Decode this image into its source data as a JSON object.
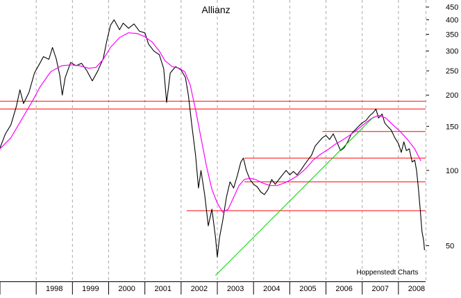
{
  "chart_data": {
    "type": "line",
    "title": "Allianz",
    "credit": "Hoppenstedt Charts",
    "scale": "log",
    "ylim": [
      36,
      480
    ],
    "xlim": [
      1997.0,
      2008.75
    ],
    "grid": "vertical dashed, one per year",
    "x_tick_labels": [
      "1998",
      "1999",
      "2000",
      "2001",
      "2002",
      "2003",
      "2004",
      "2005",
      "2006",
      "2007",
      "2008"
    ],
    "x_tick_years": [
      1998,
      1999,
      2000,
      2001,
      2002,
      2003,
      2004,
      2005,
      2006,
      2007,
      2008
    ],
    "y_tick_labels": [
      "450",
      "400",
      "350",
      "300",
      "250",
      "200",
      "150",
      "100",
      "50"
    ],
    "y_ticks": [
      450,
      400,
      350,
      300,
      250,
      200,
      150,
      100,
      50
    ],
    "series": [
      {
        "kind": "price",
        "color": "#000000",
        "points": [
          [
            1997.0,
            123
          ],
          [
            1997.15,
            140
          ],
          [
            1997.3,
            152
          ],
          [
            1997.45,
            180
          ],
          [
            1997.55,
            210
          ],
          [
            1997.65,
            185
          ],
          [
            1997.8,
            205
          ],
          [
            1997.95,
            245
          ],
          [
            1998.1,
            268
          ],
          [
            1998.2,
            285
          ],
          [
            1998.35,
            278
          ],
          [
            1998.45,
            310
          ],
          [
            1998.55,
            280
          ],
          [
            1998.65,
            240
          ],
          [
            1998.72,
            200
          ],
          [
            1998.8,
            235
          ],
          [
            1998.95,
            270
          ],
          [
            1999.1,
            262
          ],
          [
            1999.25,
            268
          ],
          [
            1999.4,
            250
          ],
          [
            1999.55,
            228
          ],
          [
            1999.7,
            250
          ],
          [
            1999.85,
            280
          ],
          [
            1999.95,
            330
          ],
          [
            2000.05,
            380
          ],
          [
            2000.15,
            400
          ],
          [
            2000.3,
            365
          ],
          [
            2000.4,
            388
          ],
          [
            2000.55,
            370
          ],
          [
            2000.7,
            385
          ],
          [
            2000.85,
            360
          ],
          [
            2001.0,
            355
          ],
          [
            2001.1,
            320
          ],
          [
            2001.25,
            300
          ],
          [
            2001.4,
            290
          ],
          [
            2001.52,
            255
          ],
          [
            2001.6,
            187
          ],
          [
            2001.7,
            245
          ],
          [
            2001.85,
            260
          ],
          [
            2002.0,
            252
          ],
          [
            2002.12,
            235
          ],
          [
            2002.2,
            200
          ],
          [
            2002.3,
            150
          ],
          [
            2002.4,
            115
          ],
          [
            2002.48,
            85
          ],
          [
            2002.55,
            100
          ],
          [
            2002.65,
            80
          ],
          [
            2002.75,
            60
          ],
          [
            2002.85,
            70
          ],
          [
            2002.95,
            54
          ],
          [
            2003.0,
            45
          ],
          [
            2003.06,
            54
          ],
          [
            2003.15,
            63
          ],
          [
            2003.25,
            78
          ],
          [
            2003.35,
            90
          ],
          [
            2003.45,
            85
          ],
          [
            2003.55,
            95
          ],
          [
            2003.65,
            108
          ],
          [
            2003.72,
            112
          ],
          [
            2003.8,
            100
          ],
          [
            2003.9,
            92
          ],
          [
            2004.0,
            88
          ],
          [
            2004.1,
            86
          ],
          [
            2004.2,
            82
          ],
          [
            2004.3,
            80
          ],
          [
            2004.4,
            84
          ],
          [
            2004.5,
            92
          ],
          [
            2004.6,
            88
          ],
          [
            2004.7,
            92
          ],
          [
            2004.8,
            96
          ],
          [
            2004.9,
            100
          ],
          [
            2005.0,
            96
          ],
          [
            2005.1,
            99
          ],
          [
            2005.2,
            96
          ],
          [
            2005.3,
            100
          ],
          [
            2005.4,
            105
          ],
          [
            2005.5,
            110
          ],
          [
            2005.6,
            115
          ],
          [
            2005.7,
            125
          ],
          [
            2005.8,
            130
          ],
          [
            2005.9,
            135
          ],
          [
            2006.0,
            138
          ],
          [
            2006.1,
            133
          ],
          [
            2006.2,
            140
          ],
          [
            2006.3,
            130
          ],
          [
            2006.4,
            120
          ],
          [
            2006.5,
            123
          ],
          [
            2006.6,
            130
          ],
          [
            2006.7,
            140
          ],
          [
            2006.8,
            145
          ],
          [
            2006.9,
            150
          ],
          [
            2007.0,
            155
          ],
          [
            2007.1,
            158
          ],
          [
            2007.2,
            165
          ],
          [
            2007.3,
            170
          ],
          [
            2007.38,
            176
          ],
          [
            2007.45,
            162
          ],
          [
            2007.55,
            168
          ],
          [
            2007.62,
            155
          ],
          [
            2007.7,
            150
          ],
          [
            2007.8,
            145
          ],
          [
            2007.9,
            135
          ],
          [
            2008.0,
            128
          ],
          [
            2008.08,
            118
          ],
          [
            2008.15,
            130
          ],
          [
            2008.22,
            120
          ],
          [
            2008.3,
            122
          ],
          [
            2008.38,
            108
          ],
          [
            2008.45,
            110
          ],
          [
            2008.5,
            100
          ],
          [
            2008.55,
            85
          ],
          [
            2008.6,
            70
          ],
          [
            2008.65,
            57
          ],
          [
            2008.7,
            52
          ],
          [
            2008.72,
            48
          ]
        ]
      },
      {
        "kind": "moving-average",
        "color": "#ff00ff",
        "points": [
          [
            1997.0,
            122
          ],
          [
            1997.3,
            135
          ],
          [
            1997.6,
            160
          ],
          [
            1997.9,
            190
          ],
          [
            1998.1,
            215
          ],
          [
            1998.4,
            248
          ],
          [
            1998.7,
            262
          ],
          [
            1998.95,
            264
          ],
          [
            1999.2,
            262
          ],
          [
            1999.45,
            256
          ],
          [
            1999.65,
            258
          ],
          [
            1999.85,
            278
          ],
          [
            2000.05,
            310
          ],
          [
            2000.3,
            340
          ],
          [
            2000.55,
            355
          ],
          [
            2000.8,
            352
          ],
          [
            2001.0,
            342
          ],
          [
            2001.2,
            326
          ],
          [
            2001.4,
            300
          ],
          [
            2001.55,
            275
          ],
          [
            2001.75,
            260
          ],
          [
            2001.95,
            256
          ],
          [
            2002.1,
            248
          ],
          [
            2002.25,
            220
          ],
          [
            2002.4,
            175
          ],
          [
            2002.55,
            135
          ],
          [
            2002.7,
            104
          ],
          [
            2002.85,
            84
          ],
          [
            2003.0,
            74
          ],
          [
            2003.15,
            68
          ],
          [
            2003.3,
            70
          ],
          [
            2003.45,
            78
          ],
          [
            2003.6,
            87
          ],
          [
            2003.75,
            92
          ],
          [
            2003.9,
            93
          ],
          [
            2004.05,
            92
          ],
          [
            2004.25,
            89
          ],
          [
            2004.45,
            87
          ],
          [
            2004.65,
            87
          ],
          [
            2004.85,
            89
          ],
          [
            2005.05,
            92
          ],
          [
            2005.25,
            96
          ],
          [
            2005.45,
            102
          ],
          [
            2005.65,
            110
          ],
          [
            2005.85,
            116
          ],
          [
            2006.05,
            121
          ],
          [
            2006.25,
            127
          ],
          [
            2006.45,
            132
          ],
          [
            2006.65,
            138
          ],
          [
            2006.85,
            145
          ],
          [
            2007.05,
            153
          ],
          [
            2007.25,
            161
          ],
          [
            2007.45,
            166
          ],
          [
            2007.65,
            162
          ],
          [
            2007.85,
            152
          ],
          [
            2008.05,
            143
          ],
          [
            2008.25,
            133
          ],
          [
            2008.45,
            122
          ],
          [
            2008.62,
            109
          ]
        ]
      }
    ],
    "trendline": {
      "color": "#00cc00",
      "points": [
        [
          2002.95,
          38
        ],
        [
          2007.32,
          164
        ]
      ]
    },
    "resistance_lines": {
      "color": "#ff0000",
      "lines": [
        {
          "y": 189,
          "x0": 1997.0,
          "x1": 2008.75
        },
        {
          "y": 176,
          "x0": 1997.0,
          "x1": 2008.75
        },
        {
          "y": 143,
          "x0": 2005.9,
          "x1": 2008.75
        },
        {
          "y": 112,
          "x0": 2003.75,
          "x1": 2008.75
        },
        {
          "y": 90,
          "x0": 2003.75,
          "x1": 2008.75
        },
        {
          "y": 69,
          "x0": 2002.15,
          "x1": 2008.75
        }
      ]
    }
  }
}
